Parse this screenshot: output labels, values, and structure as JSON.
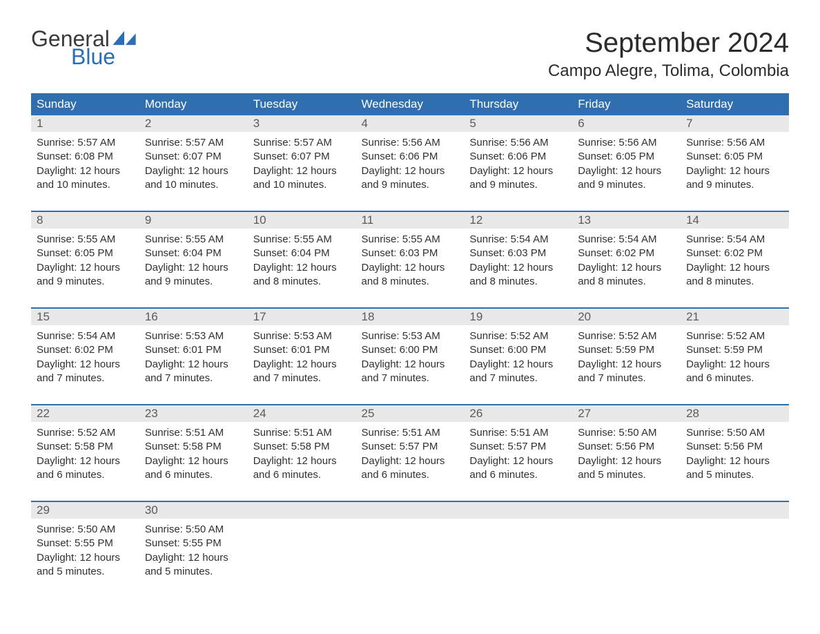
{
  "logo": {
    "word1": "General",
    "word2": "Blue",
    "shape_color": "#2a6fb5",
    "text_color_dark": "#3a3a3a"
  },
  "title": "September 2024",
  "location": "Campo Alegre, Tolima, Colombia",
  "colors": {
    "header_bg": "#2f6fb0",
    "header_fg": "#ffffff",
    "daynum_bg": "#e8e8e8",
    "daynum_fg": "#5a5a5a",
    "body_fg": "#303030",
    "rule": "#2f6fb0"
  },
  "day_names": [
    "Sunday",
    "Monday",
    "Tuesday",
    "Wednesday",
    "Thursday",
    "Friday",
    "Saturday"
  ],
  "weeks": [
    [
      {
        "n": "1",
        "sunrise": "5:57 AM",
        "sunset": "6:08 PM",
        "daylight": "12 hours and 10 minutes."
      },
      {
        "n": "2",
        "sunrise": "5:57 AM",
        "sunset": "6:07 PM",
        "daylight": "12 hours and 10 minutes."
      },
      {
        "n": "3",
        "sunrise": "5:57 AM",
        "sunset": "6:07 PM",
        "daylight": "12 hours and 10 minutes."
      },
      {
        "n": "4",
        "sunrise": "5:56 AM",
        "sunset": "6:06 PM",
        "daylight": "12 hours and 9 minutes."
      },
      {
        "n": "5",
        "sunrise": "5:56 AM",
        "sunset": "6:06 PM",
        "daylight": "12 hours and 9 minutes."
      },
      {
        "n": "6",
        "sunrise": "5:56 AM",
        "sunset": "6:05 PM",
        "daylight": "12 hours and 9 minutes."
      },
      {
        "n": "7",
        "sunrise": "5:56 AM",
        "sunset": "6:05 PM",
        "daylight": "12 hours and 9 minutes."
      }
    ],
    [
      {
        "n": "8",
        "sunrise": "5:55 AM",
        "sunset": "6:05 PM",
        "daylight": "12 hours and 9 minutes."
      },
      {
        "n": "9",
        "sunrise": "5:55 AM",
        "sunset": "6:04 PM",
        "daylight": "12 hours and 9 minutes."
      },
      {
        "n": "10",
        "sunrise": "5:55 AM",
        "sunset": "6:04 PM",
        "daylight": "12 hours and 8 minutes."
      },
      {
        "n": "11",
        "sunrise": "5:55 AM",
        "sunset": "6:03 PM",
        "daylight": "12 hours and 8 minutes."
      },
      {
        "n": "12",
        "sunrise": "5:54 AM",
        "sunset": "6:03 PM",
        "daylight": "12 hours and 8 minutes."
      },
      {
        "n": "13",
        "sunrise": "5:54 AM",
        "sunset": "6:02 PM",
        "daylight": "12 hours and 8 minutes."
      },
      {
        "n": "14",
        "sunrise": "5:54 AM",
        "sunset": "6:02 PM",
        "daylight": "12 hours and 8 minutes."
      }
    ],
    [
      {
        "n": "15",
        "sunrise": "5:54 AM",
        "sunset": "6:02 PM",
        "daylight": "12 hours and 7 minutes."
      },
      {
        "n": "16",
        "sunrise": "5:53 AM",
        "sunset": "6:01 PM",
        "daylight": "12 hours and 7 minutes."
      },
      {
        "n": "17",
        "sunrise": "5:53 AM",
        "sunset": "6:01 PM",
        "daylight": "12 hours and 7 minutes."
      },
      {
        "n": "18",
        "sunrise": "5:53 AM",
        "sunset": "6:00 PM",
        "daylight": "12 hours and 7 minutes."
      },
      {
        "n": "19",
        "sunrise": "5:52 AM",
        "sunset": "6:00 PM",
        "daylight": "12 hours and 7 minutes."
      },
      {
        "n": "20",
        "sunrise": "5:52 AM",
        "sunset": "5:59 PM",
        "daylight": "12 hours and 7 minutes."
      },
      {
        "n": "21",
        "sunrise": "5:52 AM",
        "sunset": "5:59 PM",
        "daylight": "12 hours and 6 minutes."
      }
    ],
    [
      {
        "n": "22",
        "sunrise": "5:52 AM",
        "sunset": "5:58 PM",
        "daylight": "12 hours and 6 minutes."
      },
      {
        "n": "23",
        "sunrise": "5:51 AM",
        "sunset": "5:58 PM",
        "daylight": "12 hours and 6 minutes."
      },
      {
        "n": "24",
        "sunrise": "5:51 AM",
        "sunset": "5:58 PM",
        "daylight": "12 hours and 6 minutes."
      },
      {
        "n": "25",
        "sunrise": "5:51 AM",
        "sunset": "5:57 PM",
        "daylight": "12 hours and 6 minutes."
      },
      {
        "n": "26",
        "sunrise": "5:51 AM",
        "sunset": "5:57 PM",
        "daylight": "12 hours and 6 minutes."
      },
      {
        "n": "27",
        "sunrise": "5:50 AM",
        "sunset": "5:56 PM",
        "daylight": "12 hours and 5 minutes."
      },
      {
        "n": "28",
        "sunrise": "5:50 AM",
        "sunset": "5:56 PM",
        "daylight": "12 hours and 5 minutes."
      }
    ],
    [
      {
        "n": "29",
        "sunrise": "5:50 AM",
        "sunset": "5:55 PM",
        "daylight": "12 hours and 5 minutes."
      },
      {
        "n": "30",
        "sunrise": "5:50 AM",
        "sunset": "5:55 PM",
        "daylight": "12 hours and 5 minutes."
      },
      null,
      null,
      null,
      null,
      null
    ]
  ],
  "labels": {
    "sunrise": "Sunrise: ",
    "sunset": "Sunset: ",
    "daylight": "Daylight: "
  }
}
